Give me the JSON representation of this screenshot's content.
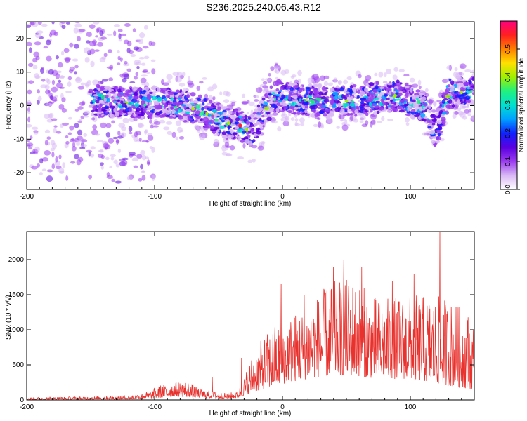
{
  "page": {
    "title": "S236.2025.240.06.43.R12"
  },
  "chart_data": [
    {
      "type": "heatmap",
      "xlabel": "Height of straight line (km)",
      "ylabel": "Frequency (Hz)",
      "xlim": [
        -200,
        150
      ],
      "ylim": [
        -25,
        25
      ],
      "xticks": [
        -200,
        -100,
        0,
        100
      ],
      "yticks": [
        -20,
        -10,
        0,
        10,
        20
      ],
      "colorbar": {
        "label": "Normalized spectral amplitude",
        "range": [
          0,
          0.6
        ],
        "ticks": [
          0.0,
          0.1,
          0.2,
          0.3,
          0.4,
          0.5
        ],
        "colors": [
          "#ffffff",
          "#d9b8f5",
          "#9b3cf0",
          "#5a00e0",
          "#1020ff",
          "#00a0ff",
          "#00e0d0",
          "#20f080",
          "#a0f000",
          "#ffe000",
          "#ff8000",
          "#ff2020",
          "#ff0080"
        ]
      },
      "ridge": [
        {
          "x": -195,
          "f": 1
        },
        {
          "x": -160,
          "f": 2
        },
        {
          "x": -130,
          "f": 1
        },
        {
          "x": -100,
          "f": 1
        },
        {
          "x": -80,
          "f": 0
        },
        {
          "x": -60,
          "f": -2
        },
        {
          "x": -45,
          "f": -5
        },
        {
          "x": -33,
          "f": -6
        },
        {
          "x": -25,
          "f": -8
        },
        {
          "x": -15,
          "f": -2
        },
        {
          "x": -5,
          "f": 3
        },
        {
          "x": 10,
          "f": 2
        },
        {
          "x": 40,
          "f": 1
        },
        {
          "x": 70,
          "f": 2
        },
        {
          "x": 90,
          "f": 3
        },
        {
          "x": 110,
          "f": 0
        },
        {
          "x": 120,
          "f": -8
        },
        {
          "x": 130,
          "f": 4
        },
        {
          "x": 150,
          "f": 4
        }
      ]
    },
    {
      "type": "line",
      "xlabel": "Height of straight line (km)",
      "ylabel": "SNR (10 * v/v)",
      "xlim": [
        -200,
        150
      ],
      "ylim": [
        0,
        2400
      ],
      "xticks": [
        -200,
        -100,
        0,
        100
      ],
      "yticks": [
        0,
        500,
        1000,
        1500,
        2000
      ],
      "color": "#e8322e",
      "envelope": [
        {
          "x": -200,
          "floor": 5,
          "peak": 35
        },
        {
          "x": -120,
          "floor": 10,
          "peak": 60
        },
        {
          "x": -105,
          "floor": 20,
          "peak": 120
        },
        {
          "x": -95,
          "floor": 30,
          "peak": 220
        },
        {
          "x": -85,
          "floor": 50,
          "peak": 260
        },
        {
          "x": -75,
          "floor": 40,
          "peak": 280
        },
        {
          "x": -65,
          "floor": 30,
          "peak": 160
        },
        {
          "x": -45,
          "floor": 20,
          "peak": 100
        },
        {
          "x": -35,
          "floor": 30,
          "peak": 120
        },
        {
          "x": -30,
          "floor": 60,
          "peak": 330
        },
        {
          "x": -25,
          "floor": 100,
          "peak": 600
        },
        {
          "x": -15,
          "floor": 150,
          "peak": 900
        },
        {
          "x": -5,
          "floor": 200,
          "peak": 1100
        },
        {
          "x": 5,
          "floor": 250,
          "peak": 1200
        },
        {
          "x": 20,
          "floor": 300,
          "peak": 1400
        },
        {
          "x": 40,
          "floor": 350,
          "peak": 1700
        },
        {
          "x": 55,
          "floor": 350,
          "peak": 1750
        },
        {
          "x": 75,
          "floor": 300,
          "peak": 1450
        },
        {
          "x": 100,
          "floor": 300,
          "peak": 1500
        },
        {
          "x": 115,
          "floor": 250,
          "peak": 1500
        },
        {
          "x": 130,
          "floor": 200,
          "peak": 1450
        },
        {
          "x": 150,
          "floor": 150,
          "peak": 1200
        }
      ],
      "spikes": [
        {
          "x": -55,
          "y": 330
        },
        {
          "x": -32,
          "y": 600
        },
        {
          "x": -1,
          "y": 1650
        },
        {
          "x": 17,
          "y": 1500
        },
        {
          "x": 40,
          "y": 1900
        },
        {
          "x": 48,
          "y": 2000
        },
        {
          "x": 62,
          "y": 1900
        },
        {
          "x": 86,
          "y": 1700
        },
        {
          "x": 103,
          "y": 1800
        },
        {
          "x": 123,
          "y": 2400
        }
      ]
    }
  ]
}
